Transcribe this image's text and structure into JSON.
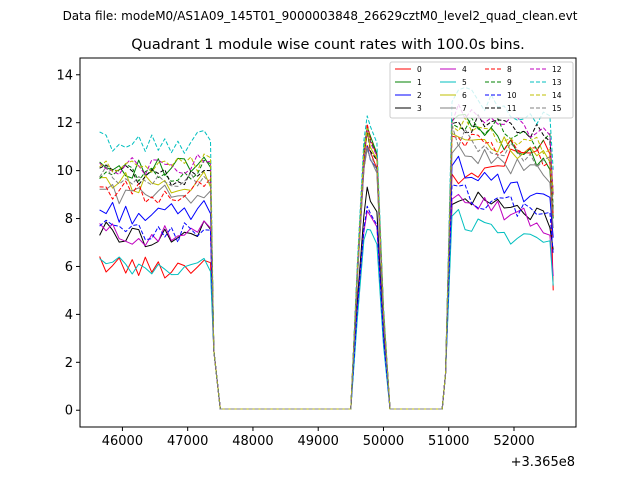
{
  "chart_data": {
    "type": "line",
    "suptitle": "Data file: modeM0/AS1A09_145T01_9000003848_26629cztM0_level2_quad_clean.evt",
    "title": "Quadrant 1 module wise count rates with 100.0s bins.",
    "xlabel": "",
    "ylabel": "",
    "x_offset_label": "+3.365e8",
    "xlim": [
      45350,
      52950
    ],
    "ylim": [
      -0.7,
      14.7
    ],
    "x_ticks": [
      46000,
      47000,
      48000,
      49000,
      50000,
      51000,
      52000
    ],
    "x_tick_labels": [
      "46000",
      "47000",
      "48000",
      "49000",
      "50000",
      "51000",
      "52000"
    ],
    "y_ticks": [
      0,
      2,
      4,
      6,
      8,
      10,
      12,
      14
    ],
    "y_tick_labels": [
      "0",
      "2",
      "4",
      "6",
      "8",
      "10",
      "12",
      "14"
    ],
    "legend_position": "top-right",
    "legend_columns": 4,
    "series": [
      {
        "name": "0",
        "color": "#ff0000",
        "dashed": false,
        "base": 6.2,
        "g2": 9.5,
        "tilt": 1.6,
        "peak": 11.2,
        "end": 5.0
      },
      {
        "name": "1",
        "color": "#008000",
        "dashed": false,
        "base": 10.3,
        "g2": 12.2,
        "tilt": -1.8,
        "peak": 11.9,
        "end": 8.0
      },
      {
        "name": "2",
        "color": "#0000ff",
        "dashed": false,
        "base": 8.4,
        "g2": 10.3,
        "tilt": -1.8,
        "peak": 11.2,
        "end": 7.2
      },
      {
        "name": "3",
        "color": "#000000",
        "dashed": false,
        "base": 7.5,
        "g2": 9.0,
        "tilt": -1.0,
        "peak": 9.2,
        "end": 6.7
      },
      {
        "name": "4",
        "color": "#bf00bf",
        "dashed": false,
        "base": 7.5,
        "g2": 9.2,
        "tilt": -1.6,
        "peak": 8.5,
        "end": 5.6
      },
      {
        "name": "5",
        "color": "#00bfbf",
        "dashed": false,
        "base": 6.1,
        "g2": 8.1,
        "tilt": -1.2,
        "peak": 7.7,
        "end": 5.2
      },
      {
        "name": "6",
        "color": "#bfbf00",
        "dashed": false,
        "base": 9.7,
        "g2": 11.8,
        "tilt": -1.5,
        "peak": 11.6,
        "end": 8.2
      },
      {
        "name": "7",
        "color": "#808080",
        "dashed": false,
        "base": 9.2,
        "g2": 11.0,
        "tilt": -1.3,
        "peak": 11.0,
        "end": 7.6
      },
      {
        "name": "8",
        "color": "#ff0000",
        "dashed": true,
        "base": 9.3,
        "g2": 11.5,
        "tilt": -1.0,
        "peak": 11.8,
        "end": 8.1
      },
      {
        "name": "9",
        "color": "#008000",
        "dashed": true,
        "base": 10.1,
        "g2": 12.3,
        "tilt": -1.2,
        "peak": 11.9,
        "end": 8.4
      },
      {
        "name": "10",
        "color": "#0000ff",
        "dashed": true,
        "base": 7.6,
        "g2": 9.1,
        "tilt": -0.9,
        "peak": 8.6,
        "end": 6.5
      },
      {
        "name": "11",
        "color": "#000000",
        "dashed": true,
        "base": 10.0,
        "g2": 12.0,
        "tilt": -0.4,
        "peak": 11.6,
        "end": 9.0
      },
      {
        "name": "12",
        "color": "#bf00bf",
        "dashed": true,
        "base": 10.4,
        "g2": 12.4,
        "tilt": -0.8,
        "peak": 11.8,
        "end": 9.0
      },
      {
        "name": "13",
        "color": "#00bfbf",
        "dashed": true,
        "base": 11.3,
        "g2": 13.3,
        "tilt": -1.2,
        "peak": 12.4,
        "end": 10.0
      },
      {
        "name": "14",
        "color": "#bfbf00",
        "dashed": true,
        "base": 10.3,
        "g2": 12.0,
        "tilt": -1.0,
        "peak": 11.7,
        "end": 9.0
      },
      {
        "name": "15",
        "color": "#808080",
        "dashed": true,
        "base": 9.8,
        "g2": 11.5,
        "tilt": -1.3,
        "peak": 11.1,
        "end": 8.3
      }
    ],
    "time_profile": {
      "segment1": {
        "x_start": 45650,
        "x_end": 47350,
        "step": 100
      },
      "gap1": {
        "x_start": 47400,
        "x_end": 49500,
        "value": 0.05
      },
      "segment2": {
        "x_rise": 49600,
        "x_peak": 49800,
        "x_fall": 50000
      },
      "gap2": {
        "x_start": 50100,
        "x_end": 50900,
        "value": 0.05
      },
      "segment3": {
        "x_start": 51050,
        "x_end": 52550,
        "step": 100,
        "x_final": 52600
      }
    }
  }
}
